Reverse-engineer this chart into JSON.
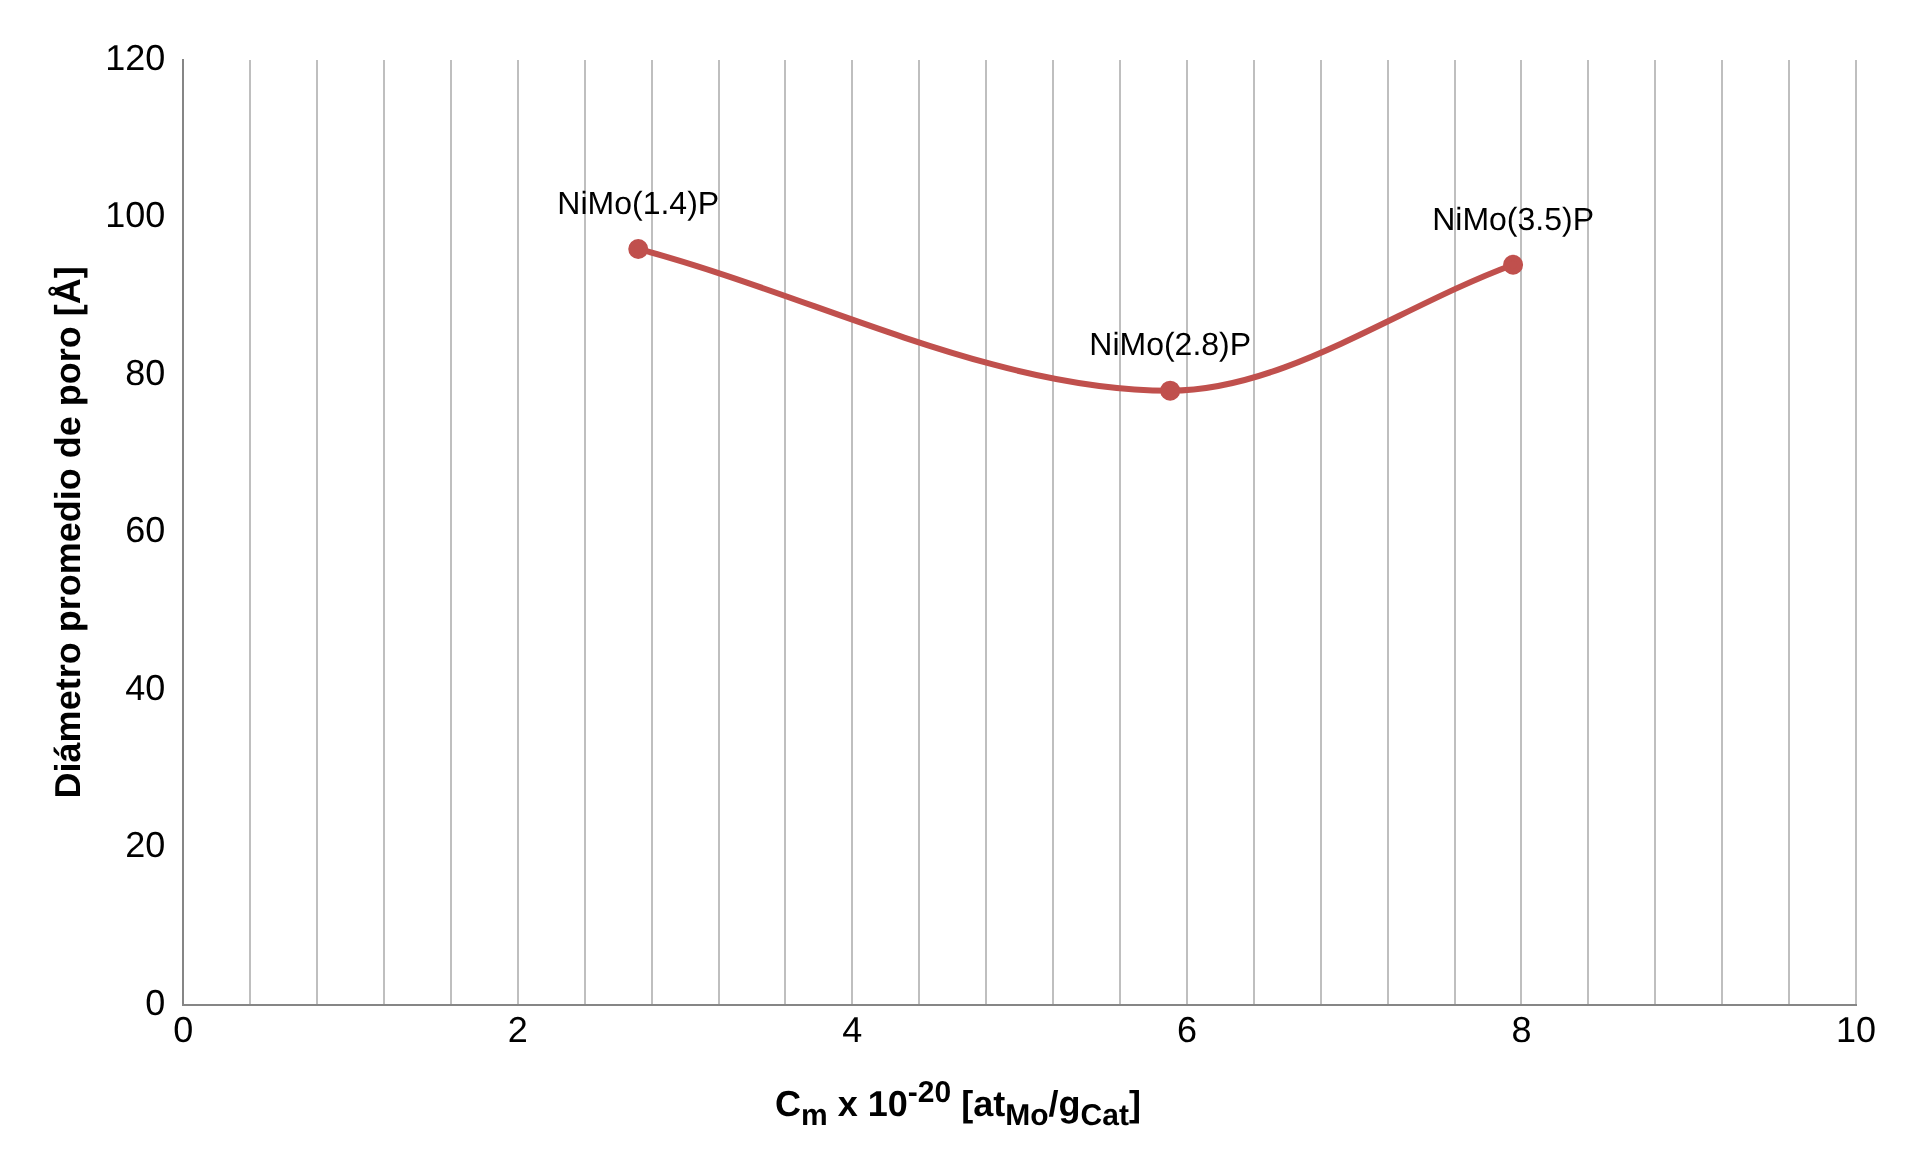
{
  "chart_data": {
    "type": "line",
    "xlabel": "C$_{m}$ x 10$^{-20}$ [at$_{Mo}$/g$_{Cat}$]",
    "ylabel": "Diámetro promedio de poro [Å]",
    "x": [
      2.72,
      5.9,
      7.95
    ],
    "series": [
      {
        "color": "#c0504d",
        "values": [
          96,
          78,
          94
        ]
      }
    ],
    "xlim": [
      0,
      10
    ],
    "xticks": [
      0,
      {
        "value": 0.4,
        "label": null
      },
      {
        "value": 0.8,
        "label": null
      },
      {
        "value": 1.2,
        "label": null
      },
      {
        "value": 1.6,
        "label": null
      },
      2,
      {
        "value": 2.4,
        "label": null
      },
      {
        "value": 2.8,
        "label": null
      },
      {
        "value": 3.2,
        "label": null
      },
      {
        "value": 3.6,
        "label": null
      },
      4,
      {
        "value": 4.4,
        "label": null
      },
      {
        "value": 4.8,
        "label": null
      },
      {
        "value": 5.2,
        "label": null
      },
      {
        "value": 5.6,
        "label": null
      },
      6,
      {
        "value": 6.4,
        "label": null
      },
      {
        "value": 6.8,
        "label": null
      },
      {
        "value": 7.2,
        "label": null
      },
      {
        "value": 7.6,
        "label": null
      },
      8,
      {
        "value": 8.4,
        "label": null
      },
      {
        "value": 8.8,
        "label": null
      },
      {
        "value": 9.2,
        "label": null
      },
      {
        "value": 9.6,
        "label": null
      },
      10
    ],
    "ylim": [
      0,
      120
    ],
    "yticks": [
      0,
      20,
      40,
      60,
      80,
      100,
      120
    ],
    "grid": "x",
    "legend": false,
    "marker": "circle",
    "line_style": "solid",
    "annotations": [
      {
        "text": "NiMo(1.4)P",
        "x": 2.72,
        "y": 96
      },
      {
        "text": "NiMo(2.8)P",
        "x": 5.9,
        "y": 78
      },
      {
        "text": "NiMo(3.5)P",
        "x": 7.95,
        "y": 94
      }
    ]
  }
}
